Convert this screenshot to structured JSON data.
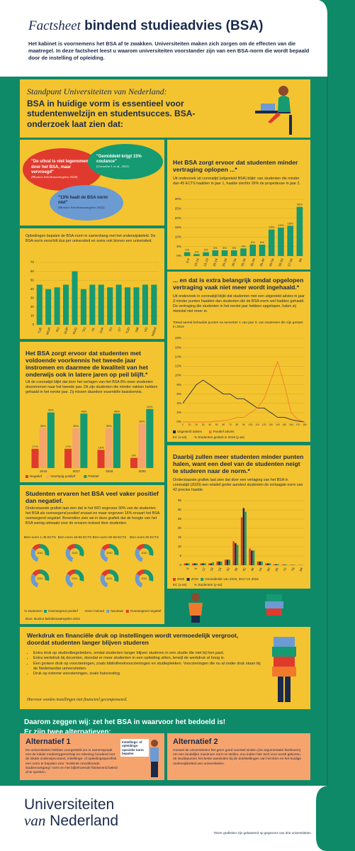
{
  "header": {
    "title_italic": "Factsheet",
    "title": "bindend studieadvies (BSA)",
    "intro": "Het kabinet is voornemens het BSA af te zwakken. Universiteiten maken zich zorgen om de effecten van die maatregel. In deze factsheet leest u waarom universiteiten voorstander zijn van een BSA-norm die wordt bepaald door de instelling of opleiding."
  },
  "standpunt": {
    "kicker": "Standpunt Universiteiten van Nederland:",
    "headline": "BSA in huidige vorm is essentieel voor studentenwelzijn en studentsucces. BSA-onderzoek laat zien dat:"
  },
  "quotes": [
    {
      "text": "\"De uitval is niet tegenomen door het BSA, maar vervroegd\"",
      "source": "(Monitor beleidsmaatregelen 2020)"
    },
    {
      "text": "\"Gemiddeld krijgt 15% coulance\"",
      "source": "(Cornelisz I. et al., 2021)"
    },
    {
      "text": "\"13% haalt de BSA norm niet\"",
      "source": "(Monitor beleidsmaatregelen 2022)"
    }
  ],
  "norms": {
    "text": "Opleidingen bepalen de BSA-norm in samenhang met het onderwijsbeleid. De BSA-norm verschilt dus per universiteit en soms ook binnen een universiteit.",
    "chart": {
      "type": "bar",
      "categories": [
        "TUE",
        "WUR",
        "RU",
        "EUR",
        "RUG",
        "TiU",
        "UL",
        "UvA",
        "VU",
        "UT",
        "TUD",
        "UM",
        "UU",
        "Gemiddeld"
      ],
      "values": [
        45,
        40,
        42,
        45,
        60,
        40,
        45,
        45,
        42,
        45,
        42,
        42,
        45,
        45
      ],
      "color": "#159a72",
      "ylim": [
        0,
        70
      ],
      "yticks": [
        0,
        10,
        20,
        30,
        40,
        50,
        60,
        70
      ]
    }
  },
  "delay": {
    "title": "Het BSA zorgt ervoor dat studenten minder vertraging oplopen ...*",
    "text": "Uit onderzoek uit coronatijd (uitgesteld BSA) blijkt: van studenten die minder dan 45 ECTS haalden in jaar 1, haalde slechts 26% de propedeuse in jaar 2.",
    "chart": {
      "type": "bar",
      "categories": [
        "0-9",
        "10-14",
        "15-19",
        "20-24",
        "25-29",
        "30-34",
        "35-39",
        "40-44",
        "45-49",
        "50-54",
        "55-59",
        "57-59",
        "60"
      ],
      "values": [
        2,
        1,
        2,
        3,
        3,
        3,
        4,
        6,
        6,
        14,
        15,
        16,
        26
      ],
      "value_labels": [
        "2%",
        "1%",
        "2%",
        "3%",
        "3%",
        "3%",
        "4%",
        "6%",
        "6%",
        "14%",
        "15%",
        "16%",
        "26%"
      ],
      "color": "#159a72",
      "ylim": [
        0,
        30
      ],
      "yticks": [
        {
          "value": 0,
          "label": "0%"
        },
        {
          "value": 5,
          "label": "5%"
        },
        {
          "value": 10,
          "label": "10%"
        },
        {
          "value": 15,
          "label": "15%"
        },
        {
          "value": 20,
          "label": "20%"
        },
        {
          "value": 25,
          "label": "25%"
        },
        {
          "value": 30,
          "label": "30%"
        }
      ]
    }
  },
  "extra": {
    "title": "... en dat is extra belangrijk omdat opgelopen vertraging vaak niet meer wordt ingehaald.*",
    "text": "Uit onderzoek in coronatijd blijkt dat studenten met een uitgesteld advies in jaar 3 minder punten haalden dan studenten die de BSA-norm wel hadden gehaald. De vertraging die studenten in het eerste jaar hebben opgelopen, halen zij meestal niet meer in.",
    "caption": "Totaal aantal behaalde punten na semester 1 van jaar 3, van studenten die zijn gestart in 2019",
    "chart": {
      "type": "line",
      "x": [
        0,
        10,
        20,
        30,
        40,
        50,
        60,
        70,
        80,
        90,
        100,
        110,
        120,
        130,
        140,
        150,
        160,
        170,
        180
      ],
      "series": [
        {
          "name": "Uitgesteld advies",
          "color": "#1b2a4a",
          "values": [
            4,
            6,
            8,
            9,
            8,
            7,
            6,
            6,
            5,
            5,
            4,
            3,
            3,
            2,
            1,
            1,
            0.5,
            0.2,
            0
          ]
        },
        {
          "name": "Positief advies",
          "color": "#f07a2a",
          "values": [
            0,
            0,
            0,
            0,
            0,
            0.2,
            0.3,
            0.5,
            1,
            1,
            2,
            3,
            5,
            9,
            13,
            8,
            2,
            0.5,
            0
          ]
        }
      ],
      "xlim": [
        0,
        180
      ],
      "xticks": [
        0,
        10,
        20,
        30,
        40,
        50,
        60,
        70,
        80,
        90,
        100,
        110,
        120,
        130,
        140,
        150,
        160,
        170,
        180
      ],
      "ylim": [
        0,
        18
      ],
      "yticks": [
        {
          "value": 0,
          "label": "0%"
        },
        {
          "value": 2,
          "label": "2%"
        },
        {
          "value": 4,
          "label": "4%"
        },
        {
          "value": 6,
          "label": "6%"
        },
        {
          "value": 8,
          "label": "8%"
        },
        {
          "value": 10,
          "label": "10%"
        },
        {
          "value": 12,
          "label": "12%"
        },
        {
          "value": 14,
          "label": "14%"
        },
        {
          "value": 16,
          "label": "16%"
        },
        {
          "value": 18,
          "label": "18%"
        }
      ],
      "x_label": "EC (x-as)",
      "y_label": "% Studenten gestart in 2019 (y-as)"
    }
  },
  "voorkennis": {
    "title": "Het BSA zorgt ervoor dat studenten met voldoende voorkennis het tweede jaar instromen en daarmee de kwaliteit van het onderwijs ook in latere jaren op peil blijft.*",
    "text": "Uit de coronatijd blijkt dat door het verlagen van het BSA 8% meer studenten doorstromen naar het tweede jaar. Dit zijn studenten die minder vakken hebben gehaald in het eerste jaar. Zij missen daardoor essentiële basiskennis.",
    "chart": {
      "type": "bar",
      "categories": [
        "2016",
        "2017",
        "2018",
        "2020"
      ],
      "series": [
        {
          "name": "Negatief",
          "color": "#e03a2e",
          "values": [
            17,
            17,
            16,
            9
          ],
          "value_labels": [
            "17%",
            "17%",
            "16%",
            "9%"
          ]
        },
        {
          "name": "Voorlopig positief",
          "color": "#f6a46e",
          "values": [
            35,
            35,
            35,
            39
          ],
          "value_labels": [
            "35%",
            "35%",
            "35%",
            "39%"
          ]
        },
        {
          "name": "Positief",
          "color": "#159a72",
          "values": [
            49,
            48,
            48,
            52
          ],
          "value_labels": [
            "49%",
            "48%",
            "48%",
            "52%"
          ]
        }
      ],
      "ylim": [
        0,
        55
      ]
    }
  },
  "daarbij": {
    "title": "Daarbij zullen meer studenten minder punten halen, want een deel van de studenten neigt te studeren naar de norm.*",
    "text": "Onderstaande grafiek laat zien dat door een verlaging van het BSA in coronatijd (2020) een relatief groter aandeel studenten de verlaagde norm van 42 precies haalde.",
    "chart": {
      "type": "bar",
      "categories": [
        "0",
        "6",
        "12",
        "18",
        "24",
        "30",
        "36",
        "42",
        "48",
        "54",
        "60",
        "66",
        "72",
        "78",
        "84"
      ],
      "series": [
        {
          "name": "2020",
          "color": "#e03a2e",
          "values": [
            1,
            1,
            1,
            1,
            2,
            3,
            13,
            26,
            9,
            2,
            1,
            0.5,
            0.3,
            0.2,
            0.1
          ]
        },
        {
          "name": "2019",
          "color": "#1b2a4a",
          "values": [
            1,
            1,
            1,
            1,
            2,
            3,
            12,
            31,
            8,
            2,
            1,
            0.5,
            0.3,
            0.2,
            0.1
          ]
        },
        {
          "name": "Gemiddelde van 2016, 2017 en 2018",
          "color": "#159a72",
          "values": [
            1,
            1,
            1,
            1.5,
            2,
            3,
            11,
            29,
            8,
            2,
            1,
            0.5,
            0.3,
            0.2,
            0.1
          ]
        }
      ],
      "ylim": [
        0,
        35
      ],
      "yticks": [
        0,
        5,
        10,
        15,
        20,
        25,
        30,
        35
      ],
      "x_label": "EC (x-as)",
      "y_label": "% Studenten (y-as)"
    }
  },
  "ervaren": {
    "title": "Studenten ervaren het BSA veel vaker positief dan negatief.",
    "text": "Onderstaande grafiek laat zien dat in het WO ongeveer 30% van de studenten het BSA als overwegend positief ervaart en maar ongeveer 16% ervaart het BSA overwegend negatief. Bovendien zien we in deze grafiek dat de hoogte van het BSA weinig uitmaakt voor de ervaren invloed door studenten.",
    "source": "Bron: Monitor beleidsmaatregelen 2022",
    "chart": {
      "type": "donut",
      "columns": [
        "BSA-norm 1-45 ECTS",
        "BSA-norm 46-50 ECTS",
        "BSA-norm 50-59 ECTS",
        "BSA-norm 60 ECTS"
      ],
      "legend_label": "% studenten",
      "series": [
        {
          "name": "Overwegend positief",
          "color": "#159a72"
        },
        {
          "name": "Geen invloed",
          "color": "#f4c430"
        },
        {
          "name": "Neutraal",
          "color": "#6b9bd2"
        },
        {
          "name": "Overwegend negatief",
          "color": "#e03a2e"
        }
      ],
      "rows": [
        {
          "label": "2020",
          "groups": [
            [
              30,
              25,
              29,
              16
            ],
            [
              31,
              24,
              29,
              16
            ],
            [
              29,
              26,
              29,
              16
            ],
            [
              30,
              24,
              30,
              16
            ]
          ]
        },
        {
          "label": "2021",
          "groups": [
            [
              29,
              26,
              29,
              16
            ],
            [
              30,
              25,
              29,
              16
            ],
            [
              31,
              24,
              28,
              17
            ],
            [
              30,
              25,
              29,
              16
            ]
          ]
        }
      ]
    }
  },
  "werkdruk": {
    "title": "Werkdruk en financiële druk op instellingen wordt vermoedelijk vergroot, doordat studenten langer blijven studeren",
    "bullets": [
      "Extra druk op studentbegeleiders, omdat studenten langer blijven studeren in een studie die niet bij hen past.",
      "Extra werkdruk bij docenten, doordat er meer studenten in een opleiding zitten, terwijl de werkdruk al hoog is.",
      "Een grotere druk op voorzieningen, zoals bibliotheekvoorzieningen en studieplekken. Voorzieningen die nu al onder druk staan bij de Nederlandse universiteiten.",
      "Druk op externe voorzieningen, zoals huisvesting."
    ],
    "note": "Hiervoor worden instellingen niet financieel gecompenseerd."
  },
  "conclusion": {
    "line1": "Daarom zeggen wij: zet het BSA in waarvoor het bedoeld is!",
    "line2": "Er zijn twee alternatieven:"
  },
  "alt1": {
    "title": "Alternatief 1",
    "text": "De universiteiten hebben voorgesteld om in samenspraak met de lokale medezeggenschap en rekening houdend met de lokale onderwijscontext, instellings- of opleidingsspecifiek een norm te bepalen voor \"evidente onvoldoende studievoortgang\" norm en het bijbehorende flankerend beleid af te spreken.",
    "sign": "Instellings- of opleidings-specieke norm bepalen"
  },
  "alt2": {
    "title": "Alternatief 2",
    "text": "Hoewel de universiteiten het geen goed voorstel vinden (zie argumentatie hierboven) om een landelijke maximum norm te stellen, zou indien hier toch voor wordt gekozen, 45 studiepunten het beste aansluiten bij de doelstellingen van het BSA en het huidige onderwijsbeleid van universiteiten."
  },
  "footer": {
    "logo1": "Universiteiten",
    "logo2_italic": "van",
    "logo2": "Nederland",
    "note": "*Deze grafieken zijn gebaseerd op gegevens van drie universiteiten."
  }
}
